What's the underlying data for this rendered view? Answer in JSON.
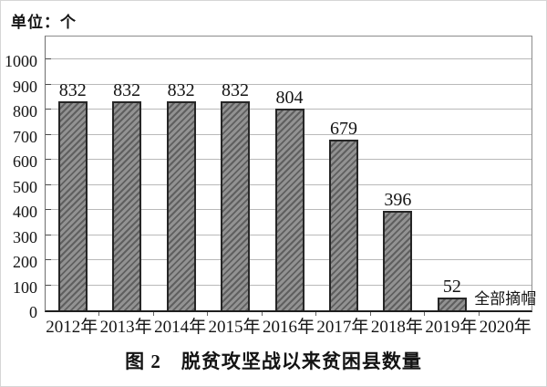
{
  "figure": {
    "unit_label": "单位：个",
    "caption": "图 2　脱贫攻坚战以来贫困县数量"
  },
  "chart_data": {
    "type": "bar",
    "title": "图 2 脱贫攻坚战以来贫困县数量",
    "unit_label": "单位：个",
    "categories": [
      "2012年",
      "2013年",
      "2014年",
      "2015年",
      "2016年",
      "2017年",
      "2018年",
      "2019年",
      "2020年"
    ],
    "values": [
      832,
      832,
      832,
      832,
      804,
      679,
      396,
      52,
      null
    ],
    "bar_labels": [
      "832",
      "832",
      "832",
      "832",
      "804",
      "679",
      "396",
      "52",
      ""
    ],
    "annotations": [
      {
        "category": "2020年",
        "text": "全部摘帽"
      }
    ],
    "xlabel": "",
    "ylabel": "个",
    "ylim": [
      0,
      1100
    ],
    "yticks": [
      0,
      100,
      200,
      300,
      400,
      500,
      600,
      700,
      800,
      900,
      1000
    ],
    "grid": true,
    "legend_position": "none",
    "colors": {
      "bar_fill": "#929292",
      "bar_hatch": "#5f5f5f",
      "bar_border": "#262626",
      "grid": "#b9b9b9",
      "axis": "#1f1f1f",
      "text": "#141414"
    }
  }
}
